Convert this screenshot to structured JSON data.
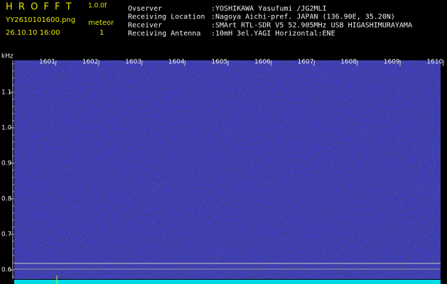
{
  "header": {
    "title": "H R O F F T",
    "version": "1.0.0f",
    "file": "YY2610101600.png",
    "datetime": "26.10.10 16:00",
    "mode": "meteor",
    "count": "1"
  },
  "info": [
    {
      "label": "Ovserver",
      "value": ":YOSHIKAWA Yasufumi /JG2MLI"
    },
    {
      "label": "Receiving Location",
      "value": ":Nagoya Aichi-pref. JAPAN (136.90E, 35.20N)"
    },
    {
      "label": "Receiver",
      "value": ":SMArt RTL-SDR V5 52.905MHz USB HIGASHIMURAYAMA"
    },
    {
      "label": "Receiving Antenna",
      "value": ":10mH 3el.YAGI Horizontal:ENE"
    }
  ],
  "axis": {
    "unit": "kHz",
    "y_labels": [
      "1.1",
      "1.0",
      "0.9",
      "0.8",
      "0.7",
      "0.6"
    ],
    "x_labels": [
      "1601",
      "1602",
      "1603",
      "1604",
      "1605",
      "1606",
      "1607",
      "1608",
      "1609",
      "1610"
    ]
  }
}
